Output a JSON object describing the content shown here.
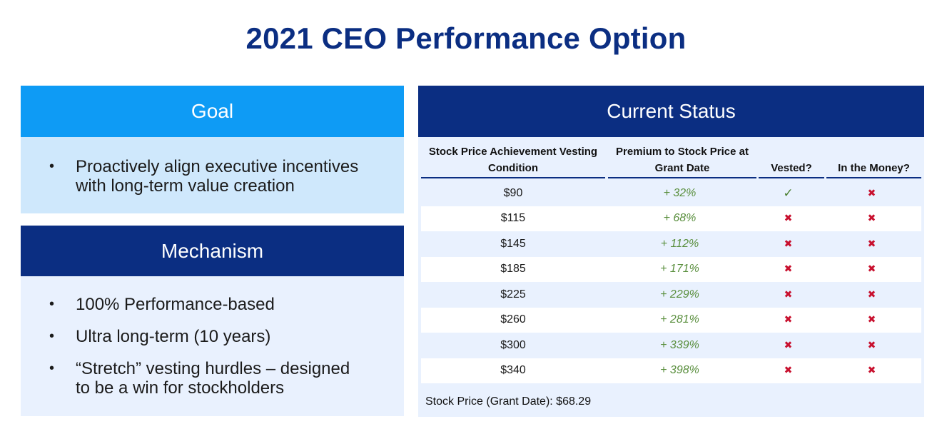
{
  "title": "2021 CEO Performance Option",
  "goal": {
    "heading": "Goal",
    "bullets": [
      "Proactively align executive incentives with long-term value creation"
    ]
  },
  "mechanism": {
    "heading": "Mechanism",
    "bullets": [
      "100% Performance-based",
      "Ultra long-term (10 years)",
      "“Stretch” vesting hurdles – designed to be a win for stockholders"
    ]
  },
  "status": {
    "heading": "Current Status",
    "columns": [
      "Stock Price Achievement Vesting Condition",
      "Premium to Stock Price at Grant Date",
      "Vested?",
      "In the Money?"
    ],
    "rows": [
      {
        "price": "$90",
        "premium": "+ 32%",
        "vested": "yes",
        "money": "no"
      },
      {
        "price": "$115",
        "premium": "+ 68%",
        "vested": "no",
        "money": "no"
      },
      {
        "price": "$145",
        "premium": "+ 112%",
        "vested": "no",
        "money": "no"
      },
      {
        "price": "$185",
        "premium": "+ 171%",
        "vested": "no",
        "money": "no"
      },
      {
        "price": "$225",
        "premium": "+ 229%",
        "vested": "no",
        "money": "no"
      },
      {
        "price": "$260",
        "premium": "+ 281%",
        "vested": "no",
        "money": "no"
      },
      {
        "price": "$300",
        "premium": "+ 339%",
        "vested": "no",
        "money": "no"
      },
      {
        "price": "$340",
        "premium": "+ 398%",
        "vested": "no",
        "money": "no"
      }
    ],
    "footer": "Stock Price (Grant Date): $68.29"
  },
  "icons": {
    "yes": "check-icon",
    "no": "cross-icon"
  },
  "colors": {
    "navy": "#0b2e82",
    "blue": "#0e9bf5",
    "light_blue": "#cfe8fc",
    "pale_blue": "#e9f1fe",
    "green": "#5a8f3e",
    "red": "#c8102e"
  }
}
